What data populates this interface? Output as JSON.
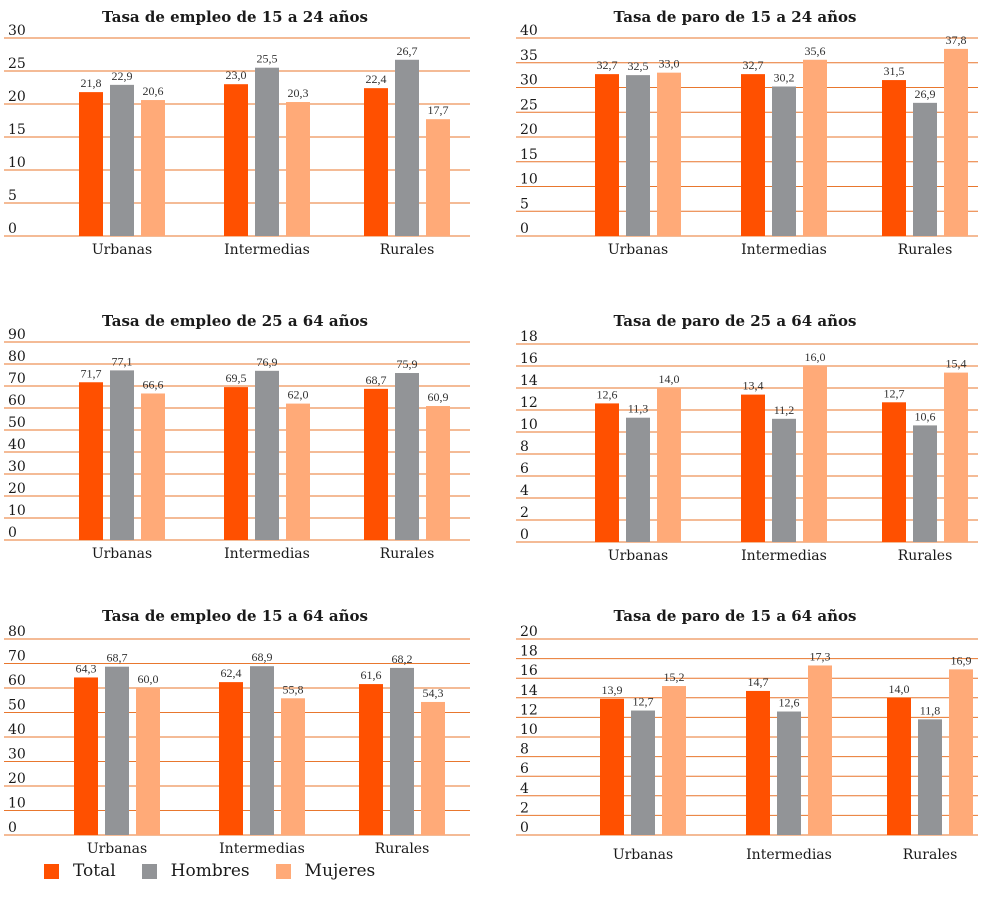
{
  "legend": {
    "items": [
      {
        "label": "Total",
        "color": "#ff5000"
      },
      {
        "label": "Hombres",
        "color": "#929497"
      },
      {
        "label": "Mujeres",
        "color": "#ffaa78"
      }
    ]
  },
  "chart_data": [
    {
      "type": "bar",
      "title": "Tasa de empleo de 15 a 24 años",
      "categories": [
        "Urbanas",
        "Intermedias",
        "Rurales"
      ],
      "yticks": [
        0,
        5,
        10,
        15,
        20,
        25,
        30
      ],
      "ylim": [
        0,
        30
      ],
      "series": [
        {
          "name": "Total",
          "values": [
            21.8,
            23.0,
            22.4
          ],
          "labels": [
            "21,8",
            "23,0",
            "22,4"
          ]
        },
        {
          "name": "Hombres",
          "values": [
            22.9,
            25.5,
            26.7
          ],
          "labels": [
            "22,9",
            "25,5",
            "26,7"
          ]
        },
        {
          "name": "Mujeres",
          "values": [
            20.6,
            20.3,
            17.7
          ],
          "labels": [
            "20,6",
            "20,3",
            "17,7"
          ]
        }
      ]
    },
    {
      "type": "bar",
      "title": "Tasa de paro de 15 a 24 años",
      "categories": [
        "Urbanas",
        "Intermedias",
        "Rurales"
      ],
      "yticks": [
        0,
        5,
        10,
        15,
        20,
        25,
        30,
        35,
        40
      ],
      "ylim": [
        0,
        40
      ],
      "series": [
        {
          "name": "Total",
          "values": [
            32.7,
            32.7,
            31.5
          ],
          "labels": [
            "32,7",
            "32,7",
            "31,5"
          ]
        },
        {
          "name": "Hombres",
          "values": [
            32.5,
            30.2,
            26.9
          ],
          "labels": [
            "32,5",
            "30,2",
            "26,9"
          ]
        },
        {
          "name": "Mujeres",
          "values": [
            33.0,
            35.6,
            37.8
          ],
          "labels": [
            "33,0",
            "35,6",
            "37,8"
          ]
        }
      ]
    },
    {
      "type": "bar",
      "title": "Tasa de empleo de 25 a 64 años",
      "categories": [
        "Urbanas",
        "Intermedias",
        "Rurales"
      ],
      "yticks": [
        0,
        10,
        20,
        30,
        40,
        50,
        60,
        70,
        80,
        90
      ],
      "ylim": [
        0,
        90
      ],
      "series": [
        {
          "name": "Total",
          "values": [
            71.7,
            69.5,
            68.7
          ],
          "labels": [
            "71,7",
            "69,5",
            "68,7"
          ]
        },
        {
          "name": "Hombres",
          "values": [
            77.1,
            76.9,
            75.9
          ],
          "labels": [
            "77,1",
            "76,9",
            "75,9"
          ]
        },
        {
          "name": "Mujeres",
          "values": [
            66.6,
            62.0,
            60.9
          ],
          "labels": [
            "66,6",
            "62,0",
            "60,9"
          ]
        }
      ]
    },
    {
      "type": "bar",
      "title": "Tasa de paro de 25 a 64 años",
      "categories": [
        "Urbanas",
        "Intermedias",
        "Rurales"
      ],
      "yticks": [
        0,
        2,
        4,
        6,
        8,
        10,
        12,
        14,
        16,
        18
      ],
      "ylim": [
        0,
        18
      ],
      "series": [
        {
          "name": "Total",
          "values": [
            12.6,
            13.4,
            12.7
          ],
          "labels": [
            "12,6",
            "13,4",
            "12,7"
          ]
        },
        {
          "name": "Hombres",
          "values": [
            11.3,
            11.2,
            10.6
          ],
          "labels": [
            "11,3",
            "11,2",
            "10,6"
          ]
        },
        {
          "name": "Mujeres",
          "values": [
            14.0,
            16.0,
            15.4
          ],
          "labels": [
            "14,0",
            "16,0",
            "15,4"
          ]
        }
      ]
    },
    {
      "type": "bar",
      "title": "Tasa de empleo de 15 a 64 años",
      "categories": [
        "Urbanas",
        "Intermedias",
        "Rurales"
      ],
      "yticks": [
        0,
        10,
        20,
        30,
        40,
        50,
        60,
        70,
        80
      ],
      "ylim": [
        0,
        80
      ],
      "series": [
        {
          "name": "Total",
          "values": [
            64.3,
            62.4,
            61.6
          ],
          "labels": [
            "64,3",
            "62,4",
            "61,6"
          ]
        },
        {
          "name": "Hombres",
          "values": [
            68.7,
            68.9,
            68.2
          ],
          "labels": [
            "68,7",
            "68,9",
            "68,2"
          ]
        },
        {
          "name": "Mujeres",
          "values": [
            60.0,
            55.8,
            54.3
          ],
          "labels": [
            "60,0",
            "55,8",
            "54,3"
          ]
        }
      ]
    },
    {
      "type": "bar",
      "title": "Tasa de paro de 15 a 64 años",
      "categories": [
        "Urbanas",
        "Intermedias",
        "Rurales"
      ],
      "yticks": [
        0,
        2,
        4,
        6,
        8,
        10,
        12,
        14,
        16,
        18,
        20
      ],
      "ylim": [
        0,
        20
      ],
      "series": [
        {
          "name": "Total",
          "values": [
            13.9,
            14.7,
            14.0
          ],
          "labels": [
            "13,9",
            "14,7",
            "14,0"
          ]
        },
        {
          "name": "Hombres",
          "values": [
            12.7,
            12.6,
            11.8
          ],
          "labels": [
            "12,7",
            "12,6",
            "11,8"
          ]
        },
        {
          "name": "Mujeres",
          "values": [
            15.2,
            17.3,
            16.9
          ],
          "labels": [
            "15,2",
            "17,3",
            "16,9"
          ]
        }
      ]
    }
  ]
}
